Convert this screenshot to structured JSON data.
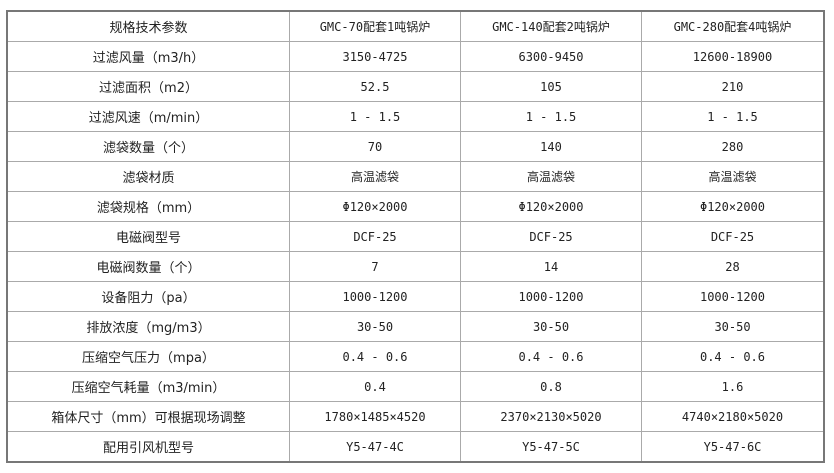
{
  "header": [
    "规格技术参数",
    "GMC-70配套1吨锅炉",
    "GMC-140配套2吨锅炉",
    "GMC-280配套4吨锅炉"
  ],
  "rows": [
    [
      "过滤风量（m3/h）",
      "3150-4725",
      "6300-9450",
      "12600-18900"
    ],
    [
      "过滤面积（m2）",
      "52.5",
      "105",
      "210"
    ],
    [
      "过滤风速（m/min）",
      "1 - 1.5",
      "1 - 1.5",
      "1 - 1.5"
    ],
    [
      "滤袋数量（个）",
      "70",
      "140",
      "280"
    ],
    [
      "滤袋材质",
      "高温滤袋",
      "高温滤袋",
      "高温滤袋"
    ],
    [
      "滤袋规格（mm）",
      "Φ120×2000",
      "Φ120×2000",
      "Φ120×2000"
    ],
    [
      "电磁阀型号",
      "DCF-25",
      "DCF-25",
      "DCF-25"
    ],
    [
      "电磁阀数量（个）",
      "7",
      "14",
      "28"
    ],
    [
      "设备阻力（pa）",
      "1000-1200",
      "1000-1200",
      "1000-1200"
    ],
    [
      "排放浓度（mg/m3）",
      "30-50",
      "30-50",
      "30-50"
    ],
    [
      "压缩空气压力（mpa）",
      "0.4 - 0.6",
      "0.4 - 0.6",
      "0.4 - 0.6"
    ],
    [
      "压缩空气耗量（m3/min）",
      "0.4",
      "0.8",
      "1.6"
    ],
    [
      "箱体尺寸（mm）可根据现场调整",
      "1780×1485×4520",
      "2370×2130×5020",
      "4740×2180×5020"
    ],
    [
      "配用引风机型号",
      "Y5-47-4C",
      "Y5-47-5C",
      "Y5-47-6C"
    ]
  ]
}
